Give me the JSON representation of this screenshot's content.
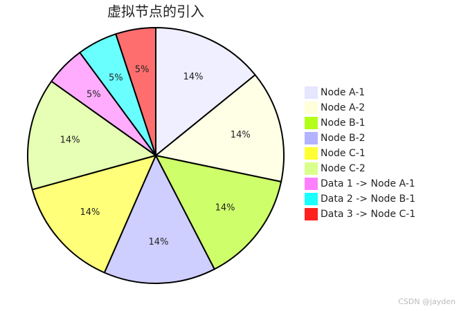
{
  "chart_data": {
    "type": "pie",
    "title": "虚拟节点的引入",
    "categories": [
      "Node A-1",
      "Node A-2",
      "Node B-1",
      "Node B-2",
      "Node C-1",
      "Node C-2",
      "Data 1 -> Node A-1",
      "Data 2 -> Node B-1",
      "Data 3 -> Node C-1"
    ],
    "values": [
      14,
      14,
      14,
      14,
      14,
      14,
      5,
      5,
      5
    ],
    "value_labels": [
      "14%",
      "14%",
      "14%",
      "14%",
      "14%",
      "14%",
      "5%",
      "5%",
      "5%"
    ],
    "colors": [
      "#e6e6ff",
      "#ffffd9",
      "#b3ff1a",
      "#b3b3ff",
      "#ffff33",
      "#d9ff8c",
      "#ff80ff",
      "#1affff",
      "#ff2020"
    ]
  },
  "watermark": "CSDN @jayden"
}
